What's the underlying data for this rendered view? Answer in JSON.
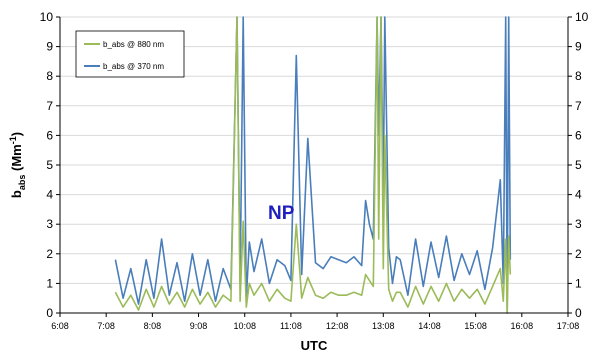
{
  "chart_data": {
    "type": "line",
    "xlabel": "UTC",
    "ylabel_main": "b",
    "ylabel_sub": "abs",
    "ylabel_unit": " (Mm",
    "ylabel_sup": "-1",
    "ylabel_close": ")",
    "ylim": [
      0,
      10
    ],
    "xlim_hours": [
      6.1333,
      17.1333
    ],
    "x_tick_labels": [
      "6:08",
      "7:08",
      "8:08",
      "9:08",
      "10:08",
      "11:08",
      "12:08",
      "13:08",
      "14:08",
      "15:08",
      "16:08",
      "17:08"
    ],
    "y_tick_labels": [
      "0",
      "1",
      "2",
      "3",
      "4",
      "5",
      "6",
      "7",
      "8",
      "9",
      "10"
    ],
    "annotation": "NP",
    "legend_position": "top-left",
    "series": [
      {
        "name": "b_abs @ 370 nm",
        "color": "#4a7ebb",
        "x": [
          "7:20",
          "7:30",
          "7:40",
          "7:50",
          "8:00",
          "8:10",
          "8:20",
          "8:30",
          "8:40",
          "8:50",
          "9:00",
          "9:10",
          "9:20",
          "9:30",
          "9:40",
          "9:50",
          "9:58",
          "10:02",
          "10:06",
          "10:10",
          "10:14",
          "10:20",
          "10:30",
          "10:40",
          "10:50",
          "11:00",
          "11:08",
          "11:15",
          "11:22",
          "11:30",
          "11:40",
          "11:50",
          "12:00",
          "12:10",
          "12:20",
          "12:30",
          "12:40",
          "12:45",
          "12:50",
          "12:55",
          "13:00",
          "13:02",
          "13:05",
          "13:08",
          "13:10",
          "13:15",
          "13:20",
          "13:25",
          "13:30",
          "13:40",
          "13:50",
          "14:00",
          "14:10",
          "14:20",
          "14:30",
          "14:40",
          "14:50",
          "15:00",
          "15:10",
          "15:20",
          "15:30",
          "15:40",
          "15:44",
          "15:47",
          "15:49",
          "15:51",
          "15:53"
        ],
        "y": [
          1.8,
          0.5,
          1.5,
          0.3,
          1.8,
          0.5,
          2.5,
          0.6,
          1.7,
          0.4,
          2.0,
          0.6,
          1.8,
          0.4,
          1.5,
          0.8,
          10.0,
          1.0,
          10.0,
          0.5,
          2.4,
          1.4,
          2.5,
          1.0,
          1.8,
          1.6,
          1.1,
          8.7,
          1.3,
          5.9,
          1.7,
          1.5,
          1.9,
          1.8,
          1.7,
          1.9,
          1.6,
          3.8,
          3.0,
          2.5,
          10.0,
          6.0,
          10.0,
          4.0,
          10.0,
          2.2,
          1.0,
          1.9,
          1.8,
          0.6,
          2.5,
          0.9,
          2.4,
          1.2,
          2.6,
          1.1,
          2.0,
          1.3,
          2.1,
          0.8,
          2.2,
          4.5,
          1.0,
          10.0,
          0.0,
          10.0,
          1.8
        ]
      },
      {
        "name": "b_abs @ 880 nm",
        "color": "#9bbb59",
        "x": [
          "7:20",
          "7:30",
          "7:40",
          "7:50",
          "8:00",
          "8:10",
          "8:20",
          "8:30",
          "8:40",
          "8:50",
          "9:00",
          "9:10",
          "9:20",
          "9:30",
          "9:40",
          "9:50",
          "9:58",
          "10:02",
          "10:06",
          "10:10",
          "10:14",
          "10:20",
          "10:30",
          "10:40",
          "10:50",
          "11:00",
          "11:08",
          "11:15",
          "11:22",
          "11:30",
          "11:40",
          "11:50",
          "12:00",
          "12:10",
          "12:20",
          "12:30",
          "12:40",
          "12:45",
          "12:50",
          "12:55",
          "13:00",
          "13:02",
          "13:05",
          "13:08",
          "13:10",
          "13:15",
          "13:20",
          "13:25",
          "13:30",
          "13:40",
          "13:50",
          "14:00",
          "14:10",
          "14:20",
          "14:30",
          "14:40",
          "14:50",
          "15:00",
          "15:10",
          "15:20",
          "15:30",
          "15:40",
          "15:44",
          "15:47",
          "15:49",
          "15:51",
          "15:53"
        ],
        "y": [
          0.7,
          0.2,
          0.6,
          0.1,
          0.8,
          0.2,
          0.9,
          0.3,
          0.7,
          0.2,
          0.8,
          0.3,
          0.7,
          0.2,
          0.6,
          0.4,
          10.0,
          0.4,
          3.1,
          0.2,
          1.0,
          0.6,
          1.0,
          0.4,
          0.8,
          0.5,
          0.4,
          3.0,
          0.5,
          1.2,
          0.6,
          0.5,
          0.7,
          0.6,
          0.6,
          0.7,
          0.6,
          1.3,
          1.1,
          0.9,
          10.0,
          2.5,
          10.0,
          1.5,
          6.0,
          0.8,
          0.4,
          0.7,
          0.7,
          0.2,
          0.9,
          0.3,
          0.9,
          0.4,
          1.0,
          0.4,
          0.8,
          0.5,
          0.8,
          0.3,
          0.9,
          1.5,
          0.4,
          2.5,
          0.0,
          2.6,
          1.3
        ]
      }
    ]
  }
}
